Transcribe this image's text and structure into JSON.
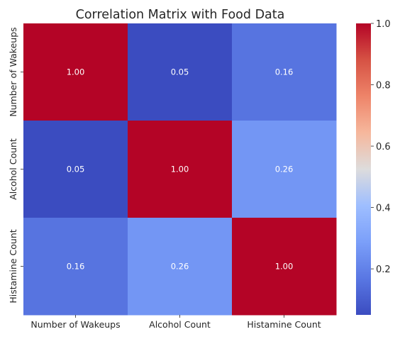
{
  "chart_data": {
    "type": "heatmap",
    "title": "Correlation Matrix with Food Data",
    "xlabel": "",
    "ylabel": "",
    "x_categories": [
      "Number of Wakeups",
      "Alcohol Count",
      "Histamine Count"
    ],
    "y_categories": [
      "Number of Wakeups",
      "Alcohol Count",
      "Histamine Count"
    ],
    "values": [
      [
        1.0,
        0.05,
        0.16
      ],
      [
        0.05,
        1.0,
        0.26
      ],
      [
        0.16,
        0.26,
        1.0
      ]
    ],
    "annotations": [
      [
        "1.00",
        "0.05",
        "0.16"
      ],
      [
        "0.05",
        "1.00",
        "0.26"
      ],
      [
        "0.16",
        "0.26",
        "1.00"
      ]
    ],
    "colormap": "coolwarm",
    "colorbar": {
      "vmin": 0.05,
      "vmax": 1.0,
      "ticks": [
        0.2,
        0.4,
        0.6,
        0.8,
        1.0
      ],
      "tick_labels": [
        "0.2",
        "0.4",
        "0.6",
        "0.8",
        "1.0"
      ],
      "position": "right"
    },
    "grid": false
  }
}
